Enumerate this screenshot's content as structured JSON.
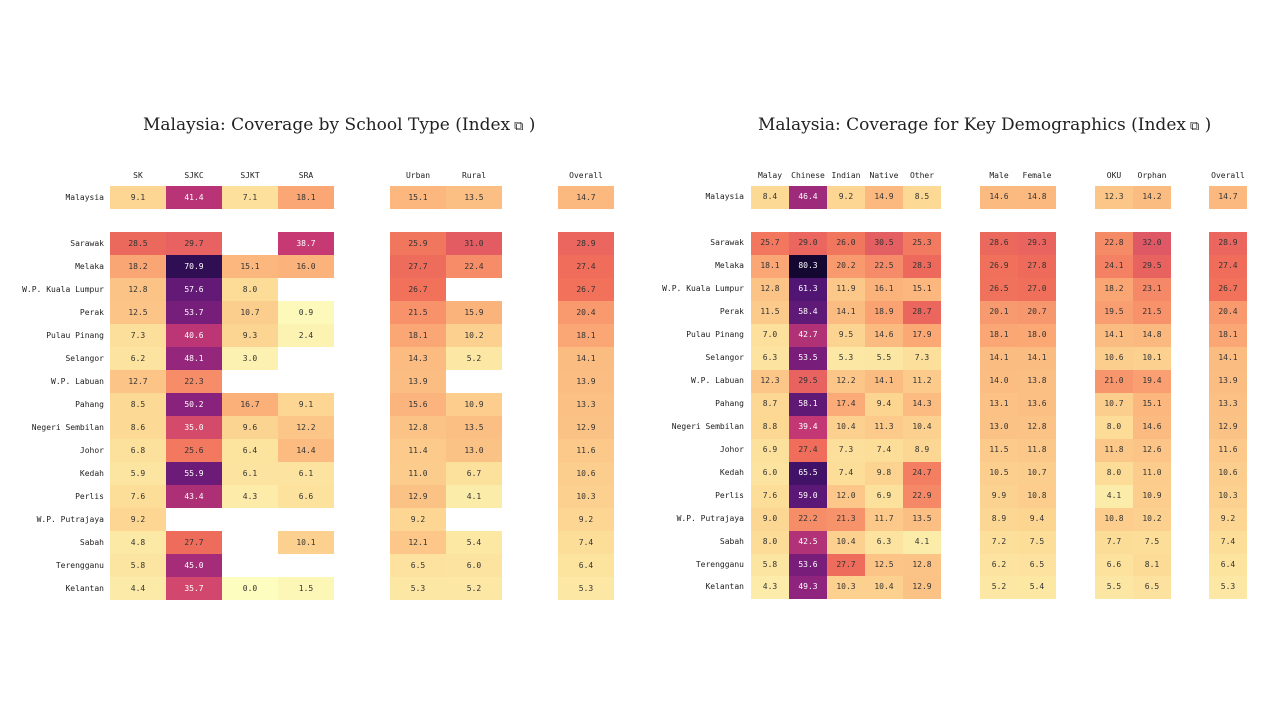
{
  "chart_data": [
    {
      "type": "heatmap",
      "title": "Malaysia: Coverage by School Type",
      "title_suffix": "(Index",
      "title_suffix_icon": "external-link-icon",
      "title_close": ")",
      "column_groups": [
        [
          "SK",
          "SJKC",
          "SJKT",
          "SRA"
        ],
        [
          "Urban",
          "Rural"
        ],
        [
          "Overall"
        ]
      ],
      "rows": [
        "Malaysia",
        "Sarawak",
        "Melaka",
        "W.P. Kuala Lumpur",
        "Perak",
        "Pulau Pinang",
        "Selangor",
        "W.P. Labuan",
        "Pahang",
        "Negeri Sembilan",
        "Johor",
        "Kedah",
        "Perlis",
        "W.P. Putrajaya",
        "Sabah",
        "Terengganu",
        "Kelantan"
      ],
      "values": [
        [
          9.1,
          41.4,
          7.1,
          18.1,
          15.1,
          13.5,
          14.7
        ],
        [
          28.5,
          29.7,
          null,
          38.7,
          25.9,
          31.0,
          28.9
        ],
        [
          18.2,
          70.9,
          15.1,
          16.0,
          27.7,
          22.4,
          27.4
        ],
        [
          12.8,
          57.6,
          8.0,
          null,
          26.7,
          null,
          26.7
        ],
        [
          12.5,
          53.7,
          10.7,
          0.9,
          21.5,
          15.9,
          20.4
        ],
        [
          7.3,
          40.6,
          9.3,
          2.4,
          18.1,
          10.2,
          18.1
        ],
        [
          6.2,
          48.1,
          3.0,
          null,
          14.3,
          5.2,
          14.1
        ],
        [
          12.7,
          22.3,
          null,
          null,
          13.9,
          null,
          13.9
        ],
        [
          8.5,
          50.2,
          16.7,
          9.1,
          15.6,
          10.9,
          13.3
        ],
        [
          8.6,
          35.0,
          9.6,
          12.2,
          12.8,
          13.5,
          12.9
        ],
        [
          6.8,
          25.6,
          6.4,
          14.4,
          11.4,
          13.0,
          11.6
        ],
        [
          5.9,
          55.9,
          6.1,
          6.1,
          11.0,
          6.7,
          10.6
        ],
        [
          7.6,
          43.4,
          4.3,
          6.6,
          12.9,
          4.1,
          10.3
        ],
        [
          9.2,
          null,
          null,
          null,
          9.2,
          null,
          9.2
        ],
        [
          4.8,
          27.7,
          null,
          10.1,
          12.1,
          5.4,
          7.4
        ],
        [
          5.8,
          45.0,
          null,
          null,
          6.5,
          6.0,
          6.4
        ],
        [
          4.4,
          35.7,
          0.0,
          1.5,
          5.3,
          5.2,
          5.3
        ]
      ],
      "color_range": [
        0,
        80
      ],
      "colormap": "magma-like (light yellow → orange → magenta → deep purple)"
    },
    {
      "type": "heatmap",
      "title": "Malaysia: Coverage for Key Demographics",
      "title_suffix": "(Index",
      "title_suffix_icon": "external-link-icon",
      "title_close": ")",
      "column_groups": [
        [
          "Malay",
          "Chinese",
          "Indian",
          "Native",
          "Other"
        ],
        [
          "Male",
          "Female"
        ],
        [
          "OKU",
          "Orphan"
        ],
        [
          "Overall"
        ]
      ],
      "rows": [
        "Malaysia",
        "Sarawak",
        "Melaka",
        "W.P. Kuala Lumpur",
        "Perak",
        "Pulau Pinang",
        "Selangor",
        "W.P. Labuan",
        "Pahang",
        "Negeri Sembilan",
        "Johor",
        "Kedah",
        "Perlis",
        "W.P. Putrajaya",
        "Sabah",
        "Terengganu",
        "Kelantan"
      ],
      "values": [
        [
          8.4,
          46.4,
          9.2,
          14.9,
          8.5,
          14.6,
          14.8,
          12.3,
          14.2,
          14.7
        ],
        [
          25.7,
          29.0,
          26.0,
          30.5,
          25.3,
          28.6,
          29.3,
          22.8,
          32.0,
          28.9
        ],
        [
          18.1,
          80.3,
          20.2,
          22.5,
          28.3,
          26.9,
          27.8,
          24.1,
          29.5,
          27.4
        ],
        [
          12.8,
          61.3,
          11.9,
          16.1,
          15.1,
          26.5,
          27.0,
          18.2,
          23.1,
          26.7
        ],
        [
          11.5,
          58.4,
          14.1,
          18.9,
          28.7,
          20.1,
          20.7,
          19.5,
          21.5,
          20.4
        ],
        [
          7.0,
          42.7,
          9.5,
          14.6,
          17.9,
          18.1,
          18.0,
          14.1,
          14.8,
          18.1
        ],
        [
          6.3,
          53.5,
          5.3,
          5.5,
          7.3,
          14.1,
          14.1,
          10.6,
          10.1,
          14.1
        ],
        [
          12.3,
          29.5,
          12.2,
          14.1,
          11.2,
          14.0,
          13.8,
          21.0,
          19.4,
          13.9
        ],
        [
          8.7,
          58.1,
          17.4,
          9.4,
          14.3,
          13.1,
          13.6,
          10.7,
          15.1,
          13.3
        ],
        [
          8.8,
          39.4,
          10.4,
          11.3,
          10.4,
          13.0,
          12.8,
          8.0,
          14.6,
          12.9
        ],
        [
          6.9,
          27.4,
          7.3,
          7.4,
          8.9,
          11.5,
          11.8,
          11.8,
          12.6,
          11.6
        ],
        [
          6.0,
          65.5,
          7.4,
          9.8,
          24.7,
          10.5,
          10.7,
          8.0,
          11.0,
          10.6
        ],
        [
          7.6,
          59.0,
          12.0,
          6.9,
          22.9,
          9.9,
          10.8,
          4.1,
          10.9,
          10.3
        ],
        [
          9.0,
          22.2,
          21.3,
          11.7,
          13.5,
          8.9,
          9.4,
          10.8,
          10.2,
          9.2
        ],
        [
          8.0,
          42.5,
          10.4,
          6.3,
          4.1,
          7.2,
          7.5,
          7.7,
          7.5,
          7.4
        ],
        [
          5.8,
          53.6,
          27.7,
          12.5,
          12.8,
          6.2,
          6.5,
          6.6,
          8.1,
          6.4
        ],
        [
          4.3,
          49.3,
          10.3,
          10.4,
          12.9,
          5.2,
          5.4,
          5.5,
          6.5,
          5.3
        ]
      ],
      "color_range": [
        0,
        80
      ],
      "colormap": "magma-like (light yellow → orange → magenta → deep purple)"
    }
  ]
}
